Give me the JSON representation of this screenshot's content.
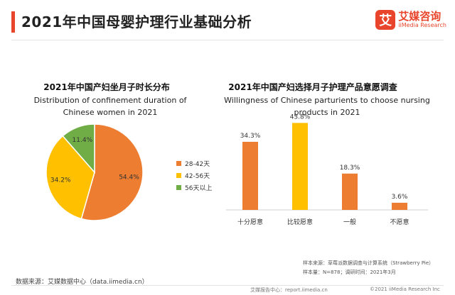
{
  "header": {
    "title": "2021年中国母婴护理行业基础分析",
    "brand_logo_char": "艾",
    "brand_cn": "艾媒咨询",
    "brand_en": "iiMedia Research",
    "accent_color": "#e8452c"
  },
  "chart_data": [
    {
      "type": "pie",
      "title": "2021年中国产妇坐月子时长分布",
      "subtitle": "Distribution of confinement duration of Chinese women in 2021",
      "labels": [
        "28-42天",
        "42-56天",
        "56天以上"
      ],
      "values": [
        54.4,
        34.2,
        11.4
      ],
      "value_labels": [
        "54.4%",
        "34.2%",
        "11.4%"
      ],
      "colors": [
        "#ed7d31",
        "#ffc000",
        "#70ad47"
      ],
      "legend_position": "right"
    },
    {
      "type": "bar",
      "title": "2021年中国产妇选择月子护理产品意愿调查",
      "subtitle": "Willingness of Chinese parturients to choose nursing products in 2021",
      "categories": [
        "十分愿意",
        "比较愿意",
        "一般",
        "不愿意"
      ],
      "values": [
        34.3,
        43.8,
        18.3,
        3.6
      ],
      "value_labels": [
        "34.3%",
        "43.8%",
        "18.3%",
        "3.6%"
      ],
      "colors": [
        "#ed7d31",
        "#ffc000",
        "#ed7d31",
        "#ed7d31"
      ],
      "ylim": [
        0,
        50
      ],
      "grid": false
    }
  ],
  "notes": {
    "sample_source": "样本来源：草莓派数据调查与计算系统（Strawberry Pie）",
    "sample_size": "样本量：N=878；调研时间：2021年3月"
  },
  "footer": {
    "data_source": "数据来源：艾媒数据中心（data.iimedia.cn）",
    "report_link": "艾媒报告中心：report.iimedia.cn",
    "copyright": "©2021  iiMedia Research  Inc"
  }
}
